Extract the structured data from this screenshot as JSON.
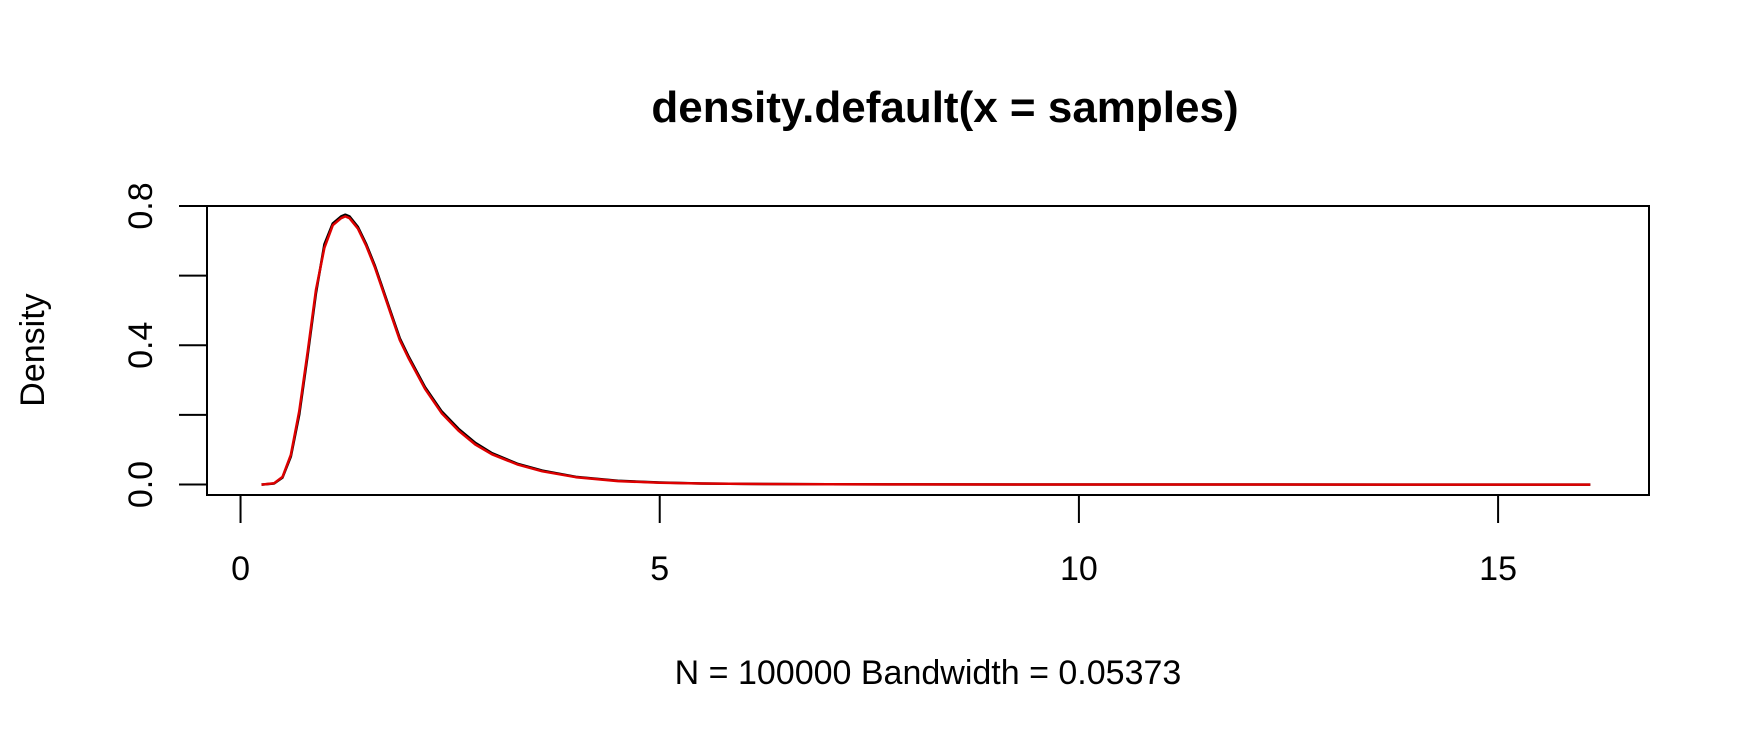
{
  "chart_data": {
    "type": "line",
    "title": "density.default(x = samples)",
    "xlabel": "N = 100000   Bandwidth = 0.05373",
    "ylabel": "Density",
    "xlim": [
      -0.4,
      16.8
    ],
    "ylim": [
      -0.03,
      0.8
    ],
    "x_ticks": [
      0,
      5,
      10,
      15
    ],
    "x_tick_labels": [
      "0",
      "5",
      "10",
      "15"
    ],
    "y_ticks": [
      0.0,
      0.2,
      0.4,
      0.6,
      0.8
    ],
    "y_tick_labels": [
      "0.0",
      "",
      "0.4",
      "",
      "0.8"
    ],
    "grid": false,
    "legend": "none",
    "series": [
      {
        "color": "#000000",
        "x": [
          0.25,
          0.4,
          0.5,
          0.6,
          0.7,
          0.8,
          0.9,
          1.0,
          1.1,
          1.2,
          1.25,
          1.3,
          1.4,
          1.5,
          1.6,
          1.7,
          1.8,
          1.9,
          2.0,
          2.2,
          2.4,
          2.6,
          2.8,
          3.0,
          3.3,
          3.6,
          4.0,
          4.5,
          5.0,
          5.5,
          6.0,
          7.0,
          8.0,
          10.0,
          12.0,
          14.0,
          16.1
        ],
        "y": [
          0.0,
          0.003,
          0.02,
          0.08,
          0.2,
          0.37,
          0.55,
          0.69,
          0.75,
          0.77,
          0.775,
          0.77,
          0.74,
          0.69,
          0.63,
          0.56,
          0.49,
          0.42,
          0.37,
          0.28,
          0.21,
          0.16,
          0.12,
          0.09,
          0.06,
          0.04,
          0.022,
          0.011,
          0.006,
          0.003,
          0.002,
          0.001,
          0.0005,
          0.0002,
          0.0001,
          0.0,
          0.0
        ]
      },
      {
        "color": "#dd0000",
        "x": [
          0.25,
          0.4,
          0.5,
          0.6,
          0.7,
          0.8,
          0.9,
          1.0,
          1.1,
          1.2,
          1.25,
          1.3,
          1.4,
          1.5,
          1.6,
          1.7,
          1.8,
          1.9,
          2.0,
          2.2,
          2.4,
          2.6,
          2.8,
          3.0,
          3.3,
          3.6,
          4.0,
          4.5,
          5.0,
          5.5,
          6.0,
          7.0,
          8.0,
          10.0,
          12.0,
          14.0,
          16.1
        ],
        "y": [
          0.0,
          0.004,
          0.022,
          0.085,
          0.21,
          0.38,
          0.56,
          0.68,
          0.745,
          0.765,
          0.77,
          0.765,
          0.735,
          0.685,
          0.625,
          0.555,
          0.485,
          0.415,
          0.365,
          0.275,
          0.205,
          0.155,
          0.115,
          0.087,
          0.058,
          0.038,
          0.021,
          0.01,
          0.005,
          0.003,
          0.002,
          0.001,
          0.0005,
          0.0002,
          0.0001,
          0.0,
          0.0
        ]
      }
    ]
  }
}
